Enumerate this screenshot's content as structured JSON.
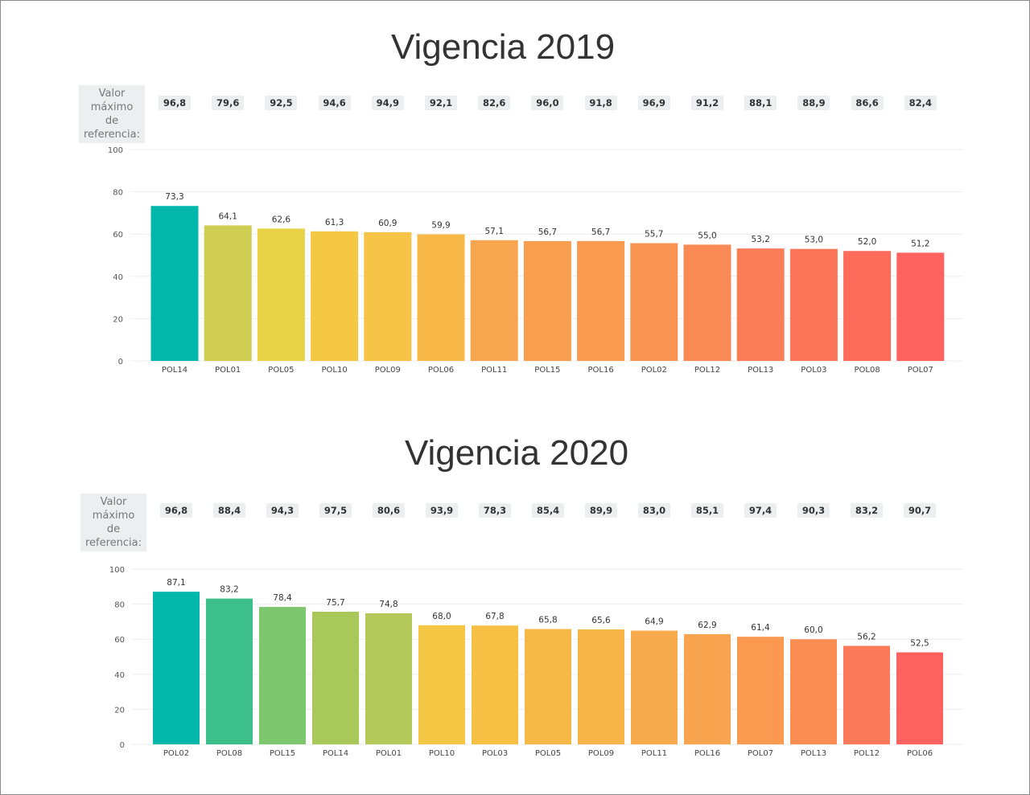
{
  "ref_label_line1": "Valor máximo",
  "ref_label_line2": "de referencia:",
  "chart_data": [
    {
      "type": "bar",
      "title": "Vigencia 2019",
      "categories": [
        "POL14",
        "POL01",
        "POL05",
        "POL10",
        "POL09",
        "POL06",
        "POL11",
        "POL15",
        "POL16",
        "POL02",
        "POL12",
        "POL13",
        "POL03",
        "POL08",
        "POL07"
      ],
      "values": [
        73.3,
        64.1,
        62.6,
        61.3,
        60.9,
        59.9,
        57.1,
        56.7,
        56.7,
        55.7,
        55.0,
        53.2,
        53.0,
        52.0,
        51.2
      ],
      "value_labels": [
        "73,3",
        "64,1",
        "62,6",
        "61,3",
        "60,9",
        "59,9",
        "57,1",
        "56,7",
        "56,7",
        "55,7",
        "55,0",
        "53,2",
        "53,0",
        "52,0",
        "51,2"
      ],
      "reference_values": [
        96.8,
        79.6,
        92.5,
        94.6,
        94.9,
        92.1,
        82.6,
        96.0,
        91.8,
        96.9,
        91.2,
        88.1,
        88.9,
        86.6,
        82.4
      ],
      "reference_labels": [
        "96,8",
        "79,6",
        "92,5",
        "94,6",
        "94,9",
        "92,1",
        "82,6",
        "96,0",
        "91,8",
        "96,9",
        "91,2",
        "88,1",
        "88,9",
        "86,6",
        "82,4"
      ],
      "colors": [
        "#01b8aa",
        "#cfce52",
        "#e8d245",
        "#f4c843",
        "#f5c447",
        "#f7b847",
        "#f8a54f",
        "#f89f4f",
        "#f89a50",
        "#f99452",
        "#fa8a55",
        "#fb7d58",
        "#fc7659",
        "#fd6b5b",
        "#fd625e"
      ],
      "ylim": [
        0,
        100
      ],
      "yticks": [
        0,
        20,
        40,
        60,
        80,
        100
      ],
      "grid": true
    },
    {
      "type": "bar",
      "title": "Vigencia 2020",
      "categories": [
        "POL02",
        "POL08",
        "POL15",
        "POL14",
        "POL01",
        "POL10",
        "POL03",
        "POL05",
        "POL09",
        "POL11",
        "POL16",
        "POL07",
        "POL13",
        "POL12",
        "POL06"
      ],
      "values": [
        87.1,
        83.2,
        78.4,
        75.7,
        74.8,
        68.0,
        67.8,
        65.8,
        65.6,
        64.9,
        62.9,
        61.4,
        60.0,
        56.2,
        52.5
      ],
      "value_labels": [
        "87,1",
        "83,2",
        "78,4",
        "75,7",
        "74,8",
        "68,0",
        "67,8",
        "65,8",
        "65,6",
        "64,9",
        "62,9",
        "61,4",
        "60,0",
        "56,2",
        "52,5"
      ],
      "reference_values": [
        96.8,
        88.4,
        94.3,
        97.5,
        80.6,
        93.9,
        78.3,
        85.4,
        89.9,
        83.0,
        85.1,
        97.4,
        90.3,
        83.2,
        90.7
      ],
      "reference_labels": [
        "96,8",
        "88,4",
        "94,3",
        "97,5",
        "80,6",
        "93,9",
        "78,3",
        "85,4",
        "89,9",
        "83,0",
        "85,1",
        "97,4",
        "90,3",
        "83,2",
        "90,7"
      ],
      "colors": [
        "#01b8aa",
        "#3dbf8c",
        "#7cc76d",
        "#a8c95a",
        "#b4c95a",
        "#f3c744",
        "#f5c043",
        "#f6b847",
        "#f7b448",
        "#f8ab4c",
        "#f8a34e",
        "#f99a50",
        "#fb8f53",
        "#fc7a59",
        "#fd625e"
      ],
      "ylim": [
        0,
        100
      ],
      "yticks": [
        0,
        20,
        40,
        60,
        80,
        100
      ],
      "grid": true
    }
  ]
}
